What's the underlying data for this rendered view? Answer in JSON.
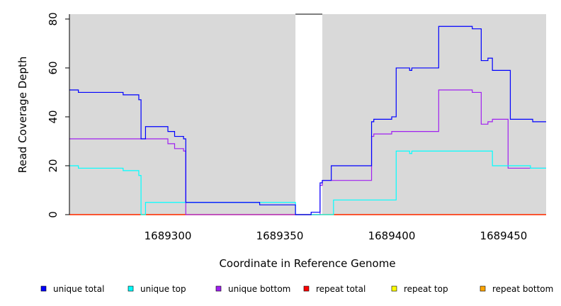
{
  "chart_data": {
    "type": "line",
    "xlabel": "Coordinate in Reference Genome",
    "ylabel": "Read Coverage Depth",
    "xlim": [
      1689256,
      1689469
    ],
    "ylim": [
      0,
      82
    ],
    "x_ticks": [
      1689300,
      1689350,
      1689400,
      1689450
    ],
    "y_ticks": [
      0,
      20,
      40,
      60,
      80
    ],
    "x_tick_labels": [
      "1689300",
      "1689350",
      "1689400",
      "1689450"
    ],
    "y_tick_labels": [
      "0",
      "20",
      "40",
      "60",
      "80"
    ],
    "background_color": "#d9d9d9",
    "gap_region": [
      1689357,
      1689369
    ],
    "legend_position": "bottom",
    "series": [
      {
        "name": "unique total",
        "color": "#0000ff",
        "points": [
          [
            1689256,
            51
          ],
          [
            1689260,
            51
          ],
          [
            1689260,
            50
          ],
          [
            1689280,
            50
          ],
          [
            1689280,
            49
          ],
          [
            1689287,
            49
          ],
          [
            1689287,
            47
          ],
          [
            1689288,
            47
          ],
          [
            1689288,
            31
          ],
          [
            1689290,
            31
          ],
          [
            1689290,
            36
          ],
          [
            1689300,
            36
          ],
          [
            1689300,
            34
          ],
          [
            1689303,
            34
          ],
          [
            1689303,
            32
          ],
          [
            1689307,
            32
          ],
          [
            1689307,
            31
          ],
          [
            1689308,
            31
          ],
          [
            1689308,
            5
          ],
          [
            1689341,
            5
          ],
          [
            1689341,
            4
          ],
          [
            1689357,
            4
          ],
          [
            1689357,
            0
          ],
          [
            1689364,
            0
          ],
          [
            1689364,
            1
          ],
          [
            1689368,
            1
          ],
          [
            1689368,
            13
          ],
          [
            1689369,
            13
          ],
          [
            1689369,
            14
          ],
          [
            1689373,
            14
          ],
          [
            1689373,
            20
          ],
          [
            1689391,
            20
          ],
          [
            1689391,
            38
          ],
          [
            1689392,
            38
          ],
          [
            1689392,
            39
          ],
          [
            1689400,
            39
          ],
          [
            1689400,
            40
          ],
          [
            1689402,
            40
          ],
          [
            1689402,
            60
          ],
          [
            1689408,
            60
          ],
          [
            1689408,
            59
          ],
          [
            1689409,
            59
          ],
          [
            1689409,
            60
          ],
          [
            1689421,
            60
          ],
          [
            1689421,
            77
          ],
          [
            1689436,
            77
          ],
          [
            1689436,
            76
          ],
          [
            1689440,
            76
          ],
          [
            1689440,
            63
          ],
          [
            1689443,
            63
          ],
          [
            1689443,
            64
          ],
          [
            1689445,
            64
          ],
          [
            1689445,
            59
          ],
          [
            1689453,
            59
          ],
          [
            1689453,
            39
          ],
          [
            1689463,
            39
          ],
          [
            1689463,
            38
          ],
          [
            1689469,
            38
          ]
        ]
      },
      {
        "name": "unique top",
        "color": "#00ffff",
        "points": [
          [
            1689256,
            20
          ],
          [
            1689260,
            20
          ],
          [
            1689260,
            19
          ],
          [
            1689280,
            19
          ],
          [
            1689280,
            18
          ],
          [
            1689287,
            18
          ],
          [
            1689287,
            16
          ],
          [
            1689288,
            16
          ],
          [
            1689288,
            0
          ],
          [
            1689290,
            0
          ],
          [
            1689290,
            5
          ],
          [
            1689308,
            5
          ],
          [
            1689308,
            5
          ],
          [
            1689357,
            5
          ],
          [
            1689357,
            0
          ],
          [
            1689374,
            0
          ],
          [
            1689374,
            6
          ],
          [
            1689402,
            6
          ],
          [
            1689402,
            26
          ],
          [
            1689408,
            26
          ],
          [
            1689408,
            25
          ],
          [
            1689409,
            25
          ],
          [
            1689409,
            26
          ],
          [
            1689445,
            26
          ],
          [
            1689445,
            20
          ],
          [
            1689462,
            20
          ],
          [
            1689462,
            19
          ],
          [
            1689469,
            19
          ]
        ]
      },
      {
        "name": "unique bottom",
        "color": "#a020f0",
        "points": [
          [
            1689256,
            31
          ],
          [
            1689300,
            31
          ],
          [
            1689300,
            29
          ],
          [
            1689303,
            29
          ],
          [
            1689303,
            27
          ],
          [
            1689307,
            27
          ],
          [
            1689307,
            26
          ],
          [
            1689308,
            26
          ],
          [
            1689308,
            0
          ],
          [
            1689368,
            0
          ],
          [
            1689368,
            12
          ],
          [
            1689369,
            12
          ],
          [
            1689369,
            14
          ],
          [
            1689391,
            14
          ],
          [
            1689391,
            32
          ],
          [
            1689392,
            32
          ],
          [
            1689392,
            33
          ],
          [
            1689400,
            33
          ],
          [
            1689400,
            34
          ],
          [
            1689421,
            34
          ],
          [
            1689421,
            51
          ],
          [
            1689436,
            51
          ],
          [
            1689436,
            50
          ],
          [
            1689440,
            50
          ],
          [
            1689440,
            37
          ],
          [
            1689443,
            37
          ],
          [
            1689443,
            38
          ],
          [
            1689445,
            38
          ],
          [
            1689445,
            39
          ],
          [
            1689452,
            39
          ],
          [
            1689452,
            19
          ],
          [
            1689469,
            19
          ]
        ]
      },
      {
        "name": "repeat total",
        "color": "#ff0000",
        "points": [
          [
            1689256,
            0
          ],
          [
            1689469,
            0
          ]
        ]
      },
      {
        "name": "repeat top",
        "color": "#ffff00",
        "points": [
          [
            1689256,
            0
          ],
          [
            1689469,
            0
          ]
        ]
      },
      {
        "name": "repeat bottom",
        "color": "#ffa500",
        "points": [
          [
            1689256,
            0
          ],
          [
            1689469,
            0
          ]
        ]
      }
    ]
  }
}
